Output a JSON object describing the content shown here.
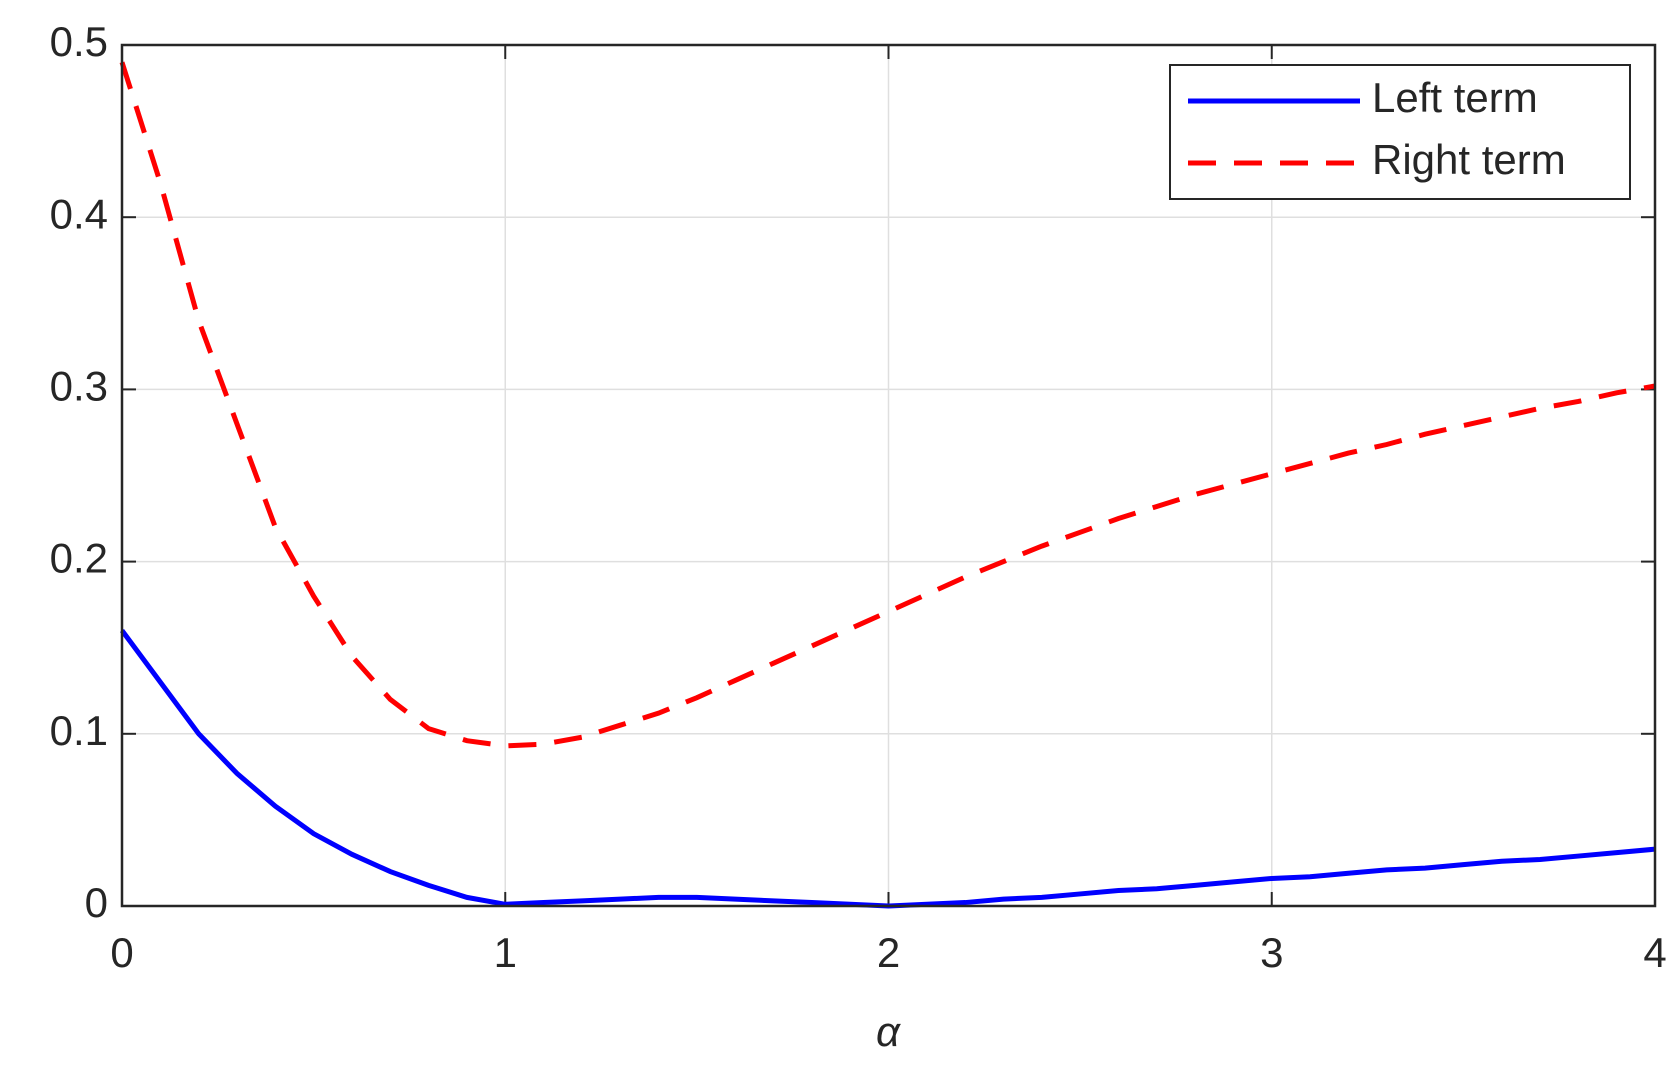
{
  "chart_data": {
    "type": "line",
    "xlabel": "α",
    "x": [
      0,
      0.1,
      0.2,
      0.3,
      0.4,
      0.5,
      0.6,
      0.7,
      0.8,
      0.9,
      1,
      1.1,
      1.2,
      1.3,
      1.4,
      1.5,
      1.6,
      1.7,
      1.8,
      1.9,
      2,
      2.1,
      2.2,
      2.3,
      2.4,
      2.5,
      2.6,
      2.7,
      2.8,
      2.9,
      3,
      3.1,
      3.2,
      3.3,
      3.4,
      3.5,
      3.6,
      3.7,
      3.8,
      3.9,
      4
    ],
    "series": [
      {
        "name": "Left term",
        "color": "#0000ff",
        "linestyle": "solid",
        "values": [
          0.16,
          0.13,
          0.1,
          0.077,
          0.058,
          0.042,
          0.03,
          0.02,
          0.012,
          0.005,
          0.001,
          0.002,
          0.003,
          0.004,
          0.005,
          0.005,
          0.004,
          0.003,
          0.002,
          0.001,
          0,
          0.001,
          0.002,
          0.004,
          0.005,
          0.007,
          0.009,
          0.01,
          0.012,
          0.014,
          0.016,
          0.017,
          0.019,
          0.021,
          0.022,
          0.024,
          0.026,
          0.027,
          0.029,
          0.031,
          0.033
        ]
      },
      {
        "name": "Right term",
        "color": "#ff0000",
        "linestyle": "dashed",
        "values": [
          0.49,
          0.42,
          0.34,
          0.28,
          0.22,
          0.18,
          0.145,
          0.12,
          0.103,
          0.096,
          0.093,
          0.094,
          0.098,
          0.105,
          0.112,
          0.121,
          0.131,
          0.141,
          0.151,
          0.161,
          0.171,
          0.181,
          0.191,
          0.2,
          0.209,
          0.217,
          0.225,
          0.232,
          0.239,
          0.245,
          0.251,
          0.257,
          0.263,
          0.268,
          0.274,
          0.279,
          0.284,
          0.289,
          0.293,
          0.298,
          0.302
        ]
      }
    ],
    "xlim": [
      0,
      4
    ],
    "xticks": [
      0,
      1,
      2,
      3,
      4
    ],
    "ylim": [
      0,
      0.5
    ],
    "yticks": [
      0,
      0.1,
      0.2,
      0.3,
      0.4,
      0.5
    ],
    "grid": true,
    "legend": "top-right"
  }
}
